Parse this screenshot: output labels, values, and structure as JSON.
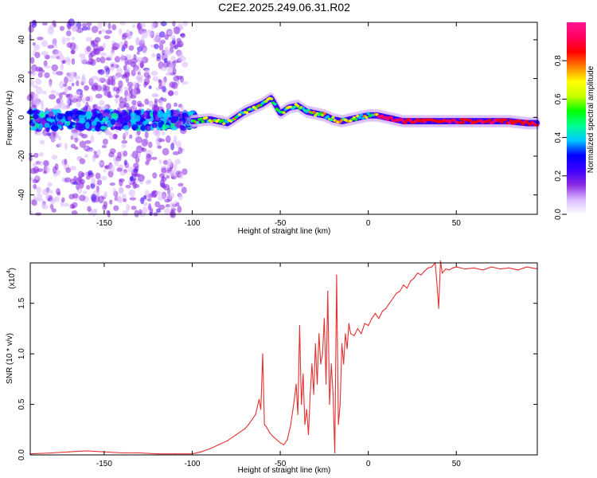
{
  "title": "C2E2.2025.249.06.31.R02",
  "chart_data": [
    {
      "type": "heatmap",
      "name": "spectrogram",
      "xlabel": "Height of straight line (km)",
      "ylabel": "Frequency (Hz)",
      "xlim": [
        -192,
        96
      ],
      "ylim": [
        -50,
        49
      ],
      "xticks": [
        -150,
        -100,
        -50,
        0,
        50
      ],
      "yticks": [
        -40,
        -20,
        0,
        20,
        40
      ],
      "xtick_labels": [
        "-150",
        "-100",
        "-50",
        "0",
        "50"
      ],
      "ytick_labels": [
        "-40",
        "-20",
        "0",
        "20",
        "40"
      ],
      "colorbar": {
        "label": "Normalized spectral amplitude",
        "range": [
          0,
          1
        ],
        "ticks": [
          0.0,
          0.2,
          0.4,
          0.6,
          0.8
        ],
        "tick_labels": [
          "0.0",
          "0.2",
          "0.4",
          "0.6",
          "0.8"
        ],
        "colors": [
          "#ffffff",
          "#d8b8ff",
          "#8a2be2",
          "#3a00ff",
          "#0000ff",
          "#00c8ff",
          "#00ff90",
          "#00ff00",
          "#c8ff00",
          "#ffff00",
          "#ff8000",
          "#ff0000",
          "#ff0060",
          "#ff1493"
        ]
      },
      "ridge": {
        "x": [
          -100,
          -90,
          -80,
          -70,
          -60,
          -55,
          -50,
          -45,
          -40,
          -35,
          -30,
          -25,
          -20,
          -15,
          -10,
          -5,
          0,
          5,
          10,
          20,
          40,
          60,
          80,
          90,
          96
        ],
        "y": [
          -2,
          -1,
          -3,
          3,
          7,
          10,
          2,
          5,
          6,
          3,
          2,
          1,
          -1,
          -2,
          -1,
          0,
          1,
          1,
          0,
          -2,
          -2,
          -2,
          -2,
          -3,
          -3
        ]
      }
    },
    {
      "type": "line",
      "name": "snr",
      "xlabel": "Height of straight line (km)",
      "ylabel": "SNR (10 * v/v)",
      "yscale_label": "(x10",
      "yscale_exp": "4",
      "xlim": [
        -192,
        96
      ],
      "ylim": [
        0,
        1.9
      ],
      "xticks": [
        -150,
        -100,
        -50,
        0,
        50
      ],
      "yticks": [
        0.0,
        0.5,
        1.0,
        1.5
      ],
      "xtick_labels": [
        "-150",
        "-100",
        "-50",
        "0",
        "50"
      ],
      "ytick_labels": [
        "0.0",
        "0.5",
        "1.0",
        "1.5"
      ],
      "color": "#e53030",
      "series": [
        {
          "name": "SNR",
          "x": [
            -192,
            -180,
            -170,
            -160,
            -150,
            -140,
            -130,
            -120,
            -110,
            -100,
            -95,
            -90,
            -85,
            -80,
            -75,
            -70,
            -68,
            -66,
            -64,
            -62,
            -61,
            -60,
            -59,
            -58,
            -56,
            -54,
            -52,
            -50,
            -48,
            -46,
            -44,
            -42,
            -41,
            -40,
            -39,
            -38,
            -37,
            -36,
            -35,
            -34,
            -33,
            -32,
            -31,
            -30,
            -29,
            -28,
            -27,
            -26,
            -25,
            -24,
            -23,
            -22,
            -21,
            -20,
            -19,
            -18,
            -17,
            -16,
            -15,
            -14,
            -13,
            -12,
            -11,
            -10,
            -8,
            -6,
            -4,
            -2,
            0,
            2,
            4,
            6,
            8,
            10,
            12,
            14,
            16,
            18,
            20,
            22,
            24,
            26,
            28,
            30,
            32,
            34,
            36,
            38,
            39,
            40,
            41,
            42,
            44,
            46,
            48,
            50,
            55,
            60,
            65,
            70,
            75,
            80,
            85,
            90,
            96
          ],
          "y": [
            0.01,
            0.02,
            0.03,
            0.04,
            0.03,
            0.02,
            0.02,
            0.01,
            0.01,
            0.01,
            0.03,
            0.06,
            0.1,
            0.14,
            0.2,
            0.26,
            0.3,
            0.35,
            0.4,
            0.55,
            0.45,
            1.0,
            0.3,
            0.28,
            0.22,
            0.18,
            0.15,
            0.12,
            0.1,
            0.15,
            0.3,
            0.55,
            0.7,
            0.4,
            1.28,
            0.5,
            0.8,
            0.3,
            0.45,
            0.2,
            0.6,
            0.9,
            0.6,
            1.1,
            0.7,
            1.2,
            0.9,
            1.0,
            1.35,
            0.7,
            1.62,
            0.5,
            0.9,
            0.6,
            0.02,
            1.78,
            0.3,
            0.5,
            1.1,
            0.9,
            1.2,
            1.05,
            1.3,
            1.2,
            1.18,
            1.25,
            1.2,
            1.3,
            1.28,
            1.35,
            1.4,
            1.35,
            1.42,
            1.45,
            1.5,
            1.55,
            1.6,
            1.62,
            1.68,
            1.65,
            1.72,
            1.75,
            1.8,
            1.78,
            1.82,
            1.85,
            1.86,
            1.9,
            1.7,
            1.45,
            1.92,
            1.8,
            1.84,
            1.83,
            1.85,
            1.86,
            1.84,
            1.85,
            1.83,
            1.86,
            1.84,
            1.85,
            1.83,
            1.86,
            1.84
          ]
        }
      ]
    }
  ]
}
